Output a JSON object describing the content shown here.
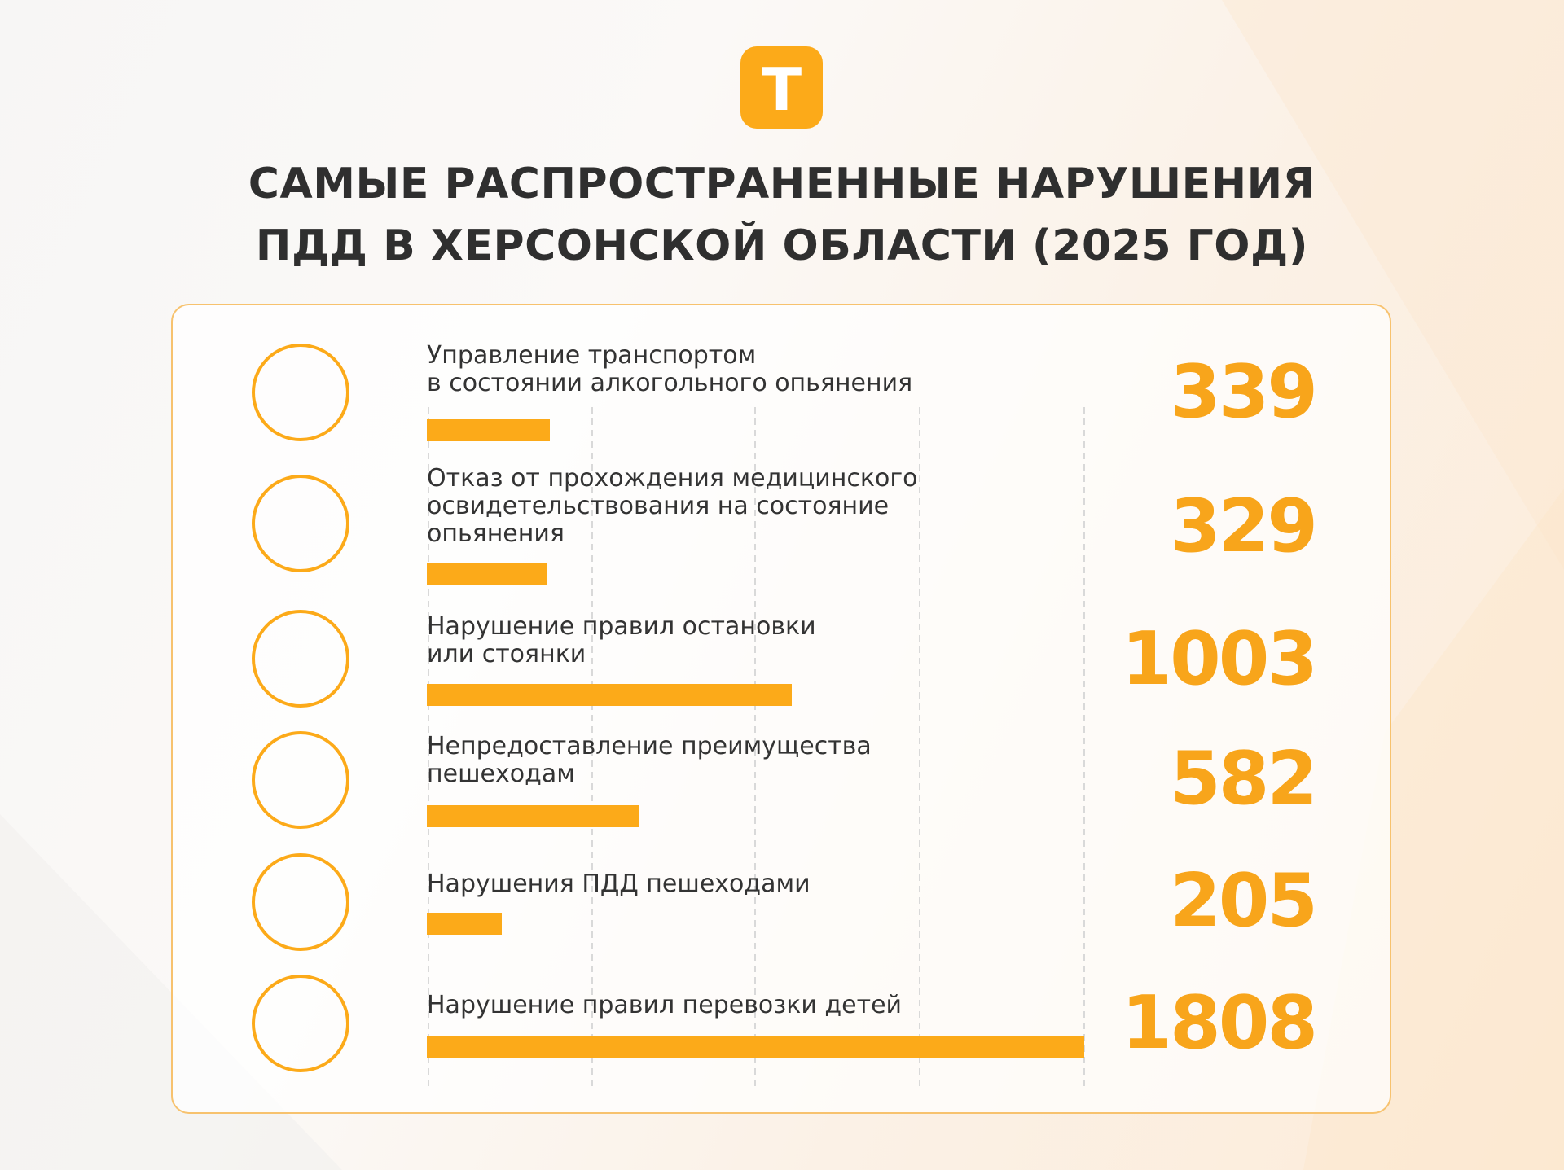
{
  "logo": {
    "letter": "Т",
    "icon": "brand-logo-icon"
  },
  "title": "САМЫЕ РАСПРОСТРАНЕННЫЕ НАРУШЕНИЯ\nПДД В ХЕРСОНСКОЙ ОБЛАСТИ (2025 ГОД)",
  "colors": {
    "accent": "#fcaa19",
    "value": "#f8a51b",
    "text": "#333333",
    "title": "#2f2f2f",
    "card_border": "#f7c26e"
  },
  "chart_data": {
    "type": "bar",
    "orientation": "horizontal",
    "grid": true,
    "xlim": [
      0,
      1808
    ],
    "categories": [
      "Управление транспортом\nв состоянии алкогольного опьянения",
      "Отказ от прохождения медицинского\nосвидетельствования на состояние\nопьянения",
      "Нарушение правил остановки\nили стоянки",
      "Непредоставление преимущества\nпешеходам",
      "Нарушения ПДД пешеходами",
      "Нарушение правил перевозки детей"
    ],
    "values": [
      339,
      329,
      1003,
      582,
      205,
      1808
    ],
    "value_labels": [
      "339",
      "329",
      "1003",
      "582",
      "205",
      "1808"
    ],
    "icons": [
      "alcohol-bottle-glass-icon",
      "document-signature-icon",
      "parking-icon",
      "pedestrian-icon",
      "crossed-pedestrian-icon",
      "child-car-seat-icon"
    ]
  }
}
